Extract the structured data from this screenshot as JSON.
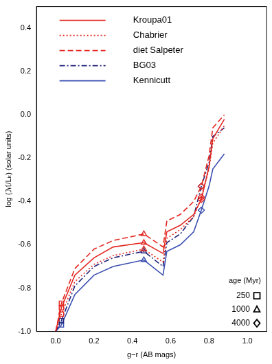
{
  "chart_data": {
    "type": "line",
    "x_label": "g−r (AB mags)",
    "y_label": "log (ℳ/Lₖ) (solar units)",
    "xlim": [
      -0.1,
      1.1
    ],
    "xticks": [
      {
        "value": 0,
        "label": "0.0"
      },
      0.2,
      0.4,
      0.6,
      0.8,
      {
        "value": 1,
        "label": "1.0"
      }
    ],
    "ylim": [
      -1,
      0.5
    ],
    "yticks": [
      {
        "value": -1,
        "label": "-1.0"
      },
      -0.8,
      -0.6,
      -0.4,
      -0.2,
      {
        "value": 0,
        "label": "0.0"
      },
      0.2,
      0.4
    ],
    "grid": false,
    "legend": "top",
    "age_key": {
      "title": "age (Myr)",
      "entries": [
        {
          "age": 250,
          "marker": "square"
        },
        {
          "age": 1000,
          "marker": "triangle"
        },
        {
          "age": 4000,
          "marker": "diamond"
        }
      ]
    },
    "series": [
      {
        "name": "Kroupa01",
        "color": "#e3261f",
        "line_style": "solid",
        "x": [
          0.0,
          0.03,
          0.1,
          0.2,
          0.3,
          0.46,
          0.56,
          0.58,
          0.65,
          0.72,
          0.76,
          0.8,
          0.82,
          0.88
        ],
        "values": [
          -1.0,
          -0.89,
          -0.74,
          -0.66,
          -0.61,
          -0.59,
          -0.64,
          -0.54,
          -0.51,
          -0.46,
          -0.39,
          -0.24,
          -0.11,
          -0.02
        ],
        "ages": [
          null,
          250,
          null,
          null,
          null,
          1000,
          null,
          null,
          null,
          null,
          4000,
          null,
          null,
          null
        ]
      },
      {
        "name": "Chabrier",
        "color": "#e3261f",
        "line_style": "dotted",
        "x": [
          0.0,
          0.03,
          0.1,
          0.2,
          0.3,
          0.46,
          0.56,
          0.58,
          0.65,
          0.72,
          0.76,
          0.8,
          0.82,
          0.88
        ],
        "values": [
          -1.0,
          -0.92,
          -0.77,
          -0.69,
          -0.65,
          -0.62,
          -0.68,
          -0.57,
          -0.53,
          -0.47,
          -0.38,
          -0.25,
          -0.13,
          -0.05
        ],
        "ages": [
          null,
          250,
          null,
          null,
          null,
          1000,
          null,
          null,
          null,
          null,
          4000,
          null,
          null,
          null
        ]
      },
      {
        "name": "diet Salpeter",
        "color": "#e3261f",
        "line_style": "dashed",
        "x": [
          0.0,
          0.03,
          0.1,
          0.2,
          0.3,
          0.46,
          0.56,
          0.58,
          0.65,
          0.72,
          0.76,
          0.8,
          0.82,
          0.88
        ],
        "values": [
          -1.0,
          -0.87,
          -0.71,
          -0.62,
          -0.58,
          -0.55,
          -0.61,
          -0.49,
          -0.46,
          -0.4,
          -0.33,
          -0.19,
          -0.06,
          0.0
        ],
        "ages": [
          null,
          250,
          null,
          null,
          null,
          1000,
          null,
          null,
          null,
          null,
          4000,
          null,
          null,
          null
        ]
      },
      {
        "name": "BG03",
        "color": "#1f237a",
        "line_style": "dashdot",
        "x": [
          0.0,
          0.03,
          0.1,
          0.2,
          0.3,
          0.46,
          0.56,
          0.58,
          0.65,
          0.72,
          0.76,
          0.8,
          0.82,
          0.88
        ],
        "values": [
          -1.0,
          -0.95,
          -0.79,
          -0.7,
          -0.66,
          -0.63,
          -0.7,
          -0.59,
          -0.55,
          -0.47,
          -0.33,
          -0.22,
          -0.1,
          -0.06
        ],
        "ages": [
          null,
          250,
          null,
          null,
          null,
          1000,
          null,
          null,
          null,
          null,
          4000,
          null,
          null,
          null
        ]
      },
      {
        "name": "Kennicutt",
        "color": "#3b4fb0",
        "line_style": "solid",
        "x": [
          0.0,
          0.03,
          0.1,
          0.2,
          0.3,
          0.46,
          0.56,
          0.58,
          0.65,
          0.72,
          0.76,
          0.8,
          0.82,
          0.88
        ],
        "values": [
          -1.0,
          -0.97,
          -0.83,
          -0.74,
          -0.7,
          -0.67,
          -0.74,
          -0.63,
          -0.6,
          -0.54,
          -0.44,
          -0.33,
          -0.25,
          -0.18
        ],
        "ages": [
          null,
          250,
          null,
          null,
          null,
          1000,
          null,
          null,
          null,
          null,
          4000,
          null,
          null,
          null
        ]
      }
    ]
  }
}
